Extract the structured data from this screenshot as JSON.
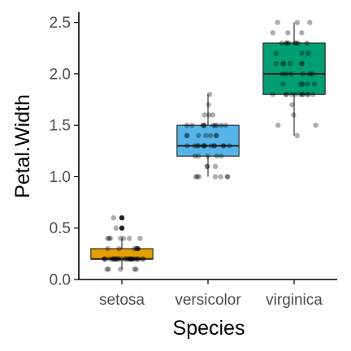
{
  "chart_data": {
    "type": "boxplot",
    "xlabel": "Species",
    "ylabel": "Petal.Width",
    "ylim": [
      0.0,
      2.6
    ],
    "yticks": [
      "0.0",
      "0.5",
      "1.0",
      "1.5",
      "2.0",
      "2.5"
    ],
    "grid": false,
    "legend": "none",
    "categories": [
      "setosa",
      "versicolor",
      "virginica"
    ],
    "series": [
      {
        "color": "#E69F00",
        "min": 0.1,
        "q1": 0.2,
        "median": 0.2,
        "q3": 0.3,
        "max": 0.4,
        "outliers": [
          0.5,
          0.6
        ],
        "points": [
          0.2,
          0.2,
          0.2,
          0.2,
          0.2,
          0.4,
          0.3,
          0.2,
          0.2,
          0.1,
          0.2,
          0.2,
          0.1,
          0.1,
          0.2,
          0.4,
          0.4,
          0.3,
          0.3,
          0.3,
          0.2,
          0.4,
          0.2,
          0.5,
          0.2,
          0.2,
          0.4,
          0.2,
          0.2,
          0.2,
          0.2,
          0.4,
          0.1,
          0.2,
          0.2,
          0.2,
          0.2,
          0.1,
          0.2,
          0.2,
          0.3,
          0.3,
          0.2,
          0.6,
          0.4,
          0.3,
          0.2,
          0.2,
          0.2,
          0.2
        ]
      },
      {
        "color": "#56B4E9",
        "min": 1.0,
        "q1": 1.2,
        "median": 1.3,
        "q3": 1.5,
        "max": 1.8,
        "outliers": [],
        "points": [
          1.4,
          1.5,
          1.5,
          1.3,
          1.5,
          1.3,
          1.6,
          1.0,
          1.3,
          1.4,
          1.0,
          1.5,
          1.0,
          1.4,
          1.3,
          1.4,
          1.5,
          1.0,
          1.5,
          1.1,
          1.8,
          1.3,
          1.5,
          1.2,
          1.3,
          1.4,
          1.4,
          1.7,
          1.5,
          1.0,
          1.1,
          1.0,
          1.2,
          1.6,
          1.5,
          1.6,
          1.5,
          1.3,
          1.3,
          1.3,
          1.2,
          1.4,
          1.2,
          1.0,
          1.3,
          1.2,
          1.3,
          1.3,
          1.1,
          1.3
        ]
      },
      {
        "color": "#009E73",
        "min": 1.4,
        "q1": 1.8,
        "median": 2.0,
        "q3": 2.3,
        "max": 2.5,
        "outliers": [],
        "points": [
          2.5,
          1.9,
          2.1,
          1.8,
          2.2,
          2.1,
          1.7,
          1.8,
          1.8,
          2.5,
          2.0,
          1.9,
          2.1,
          2.0,
          2.4,
          2.3,
          1.8,
          2.2,
          2.3,
          1.5,
          2.3,
          2.0,
          2.0,
          1.8,
          2.1,
          1.8,
          1.8,
          1.8,
          2.1,
          1.6,
          1.9,
          2.0,
          2.2,
          1.5,
          1.4,
          2.3,
          2.4,
          1.8,
          1.8,
          2.1,
          2.4,
          2.3,
          1.9,
          2.3,
          2.5,
          2.3,
          1.9,
          2.0,
          2.3,
          1.8
        ]
      }
    ],
    "points_color": "#000000"
  }
}
